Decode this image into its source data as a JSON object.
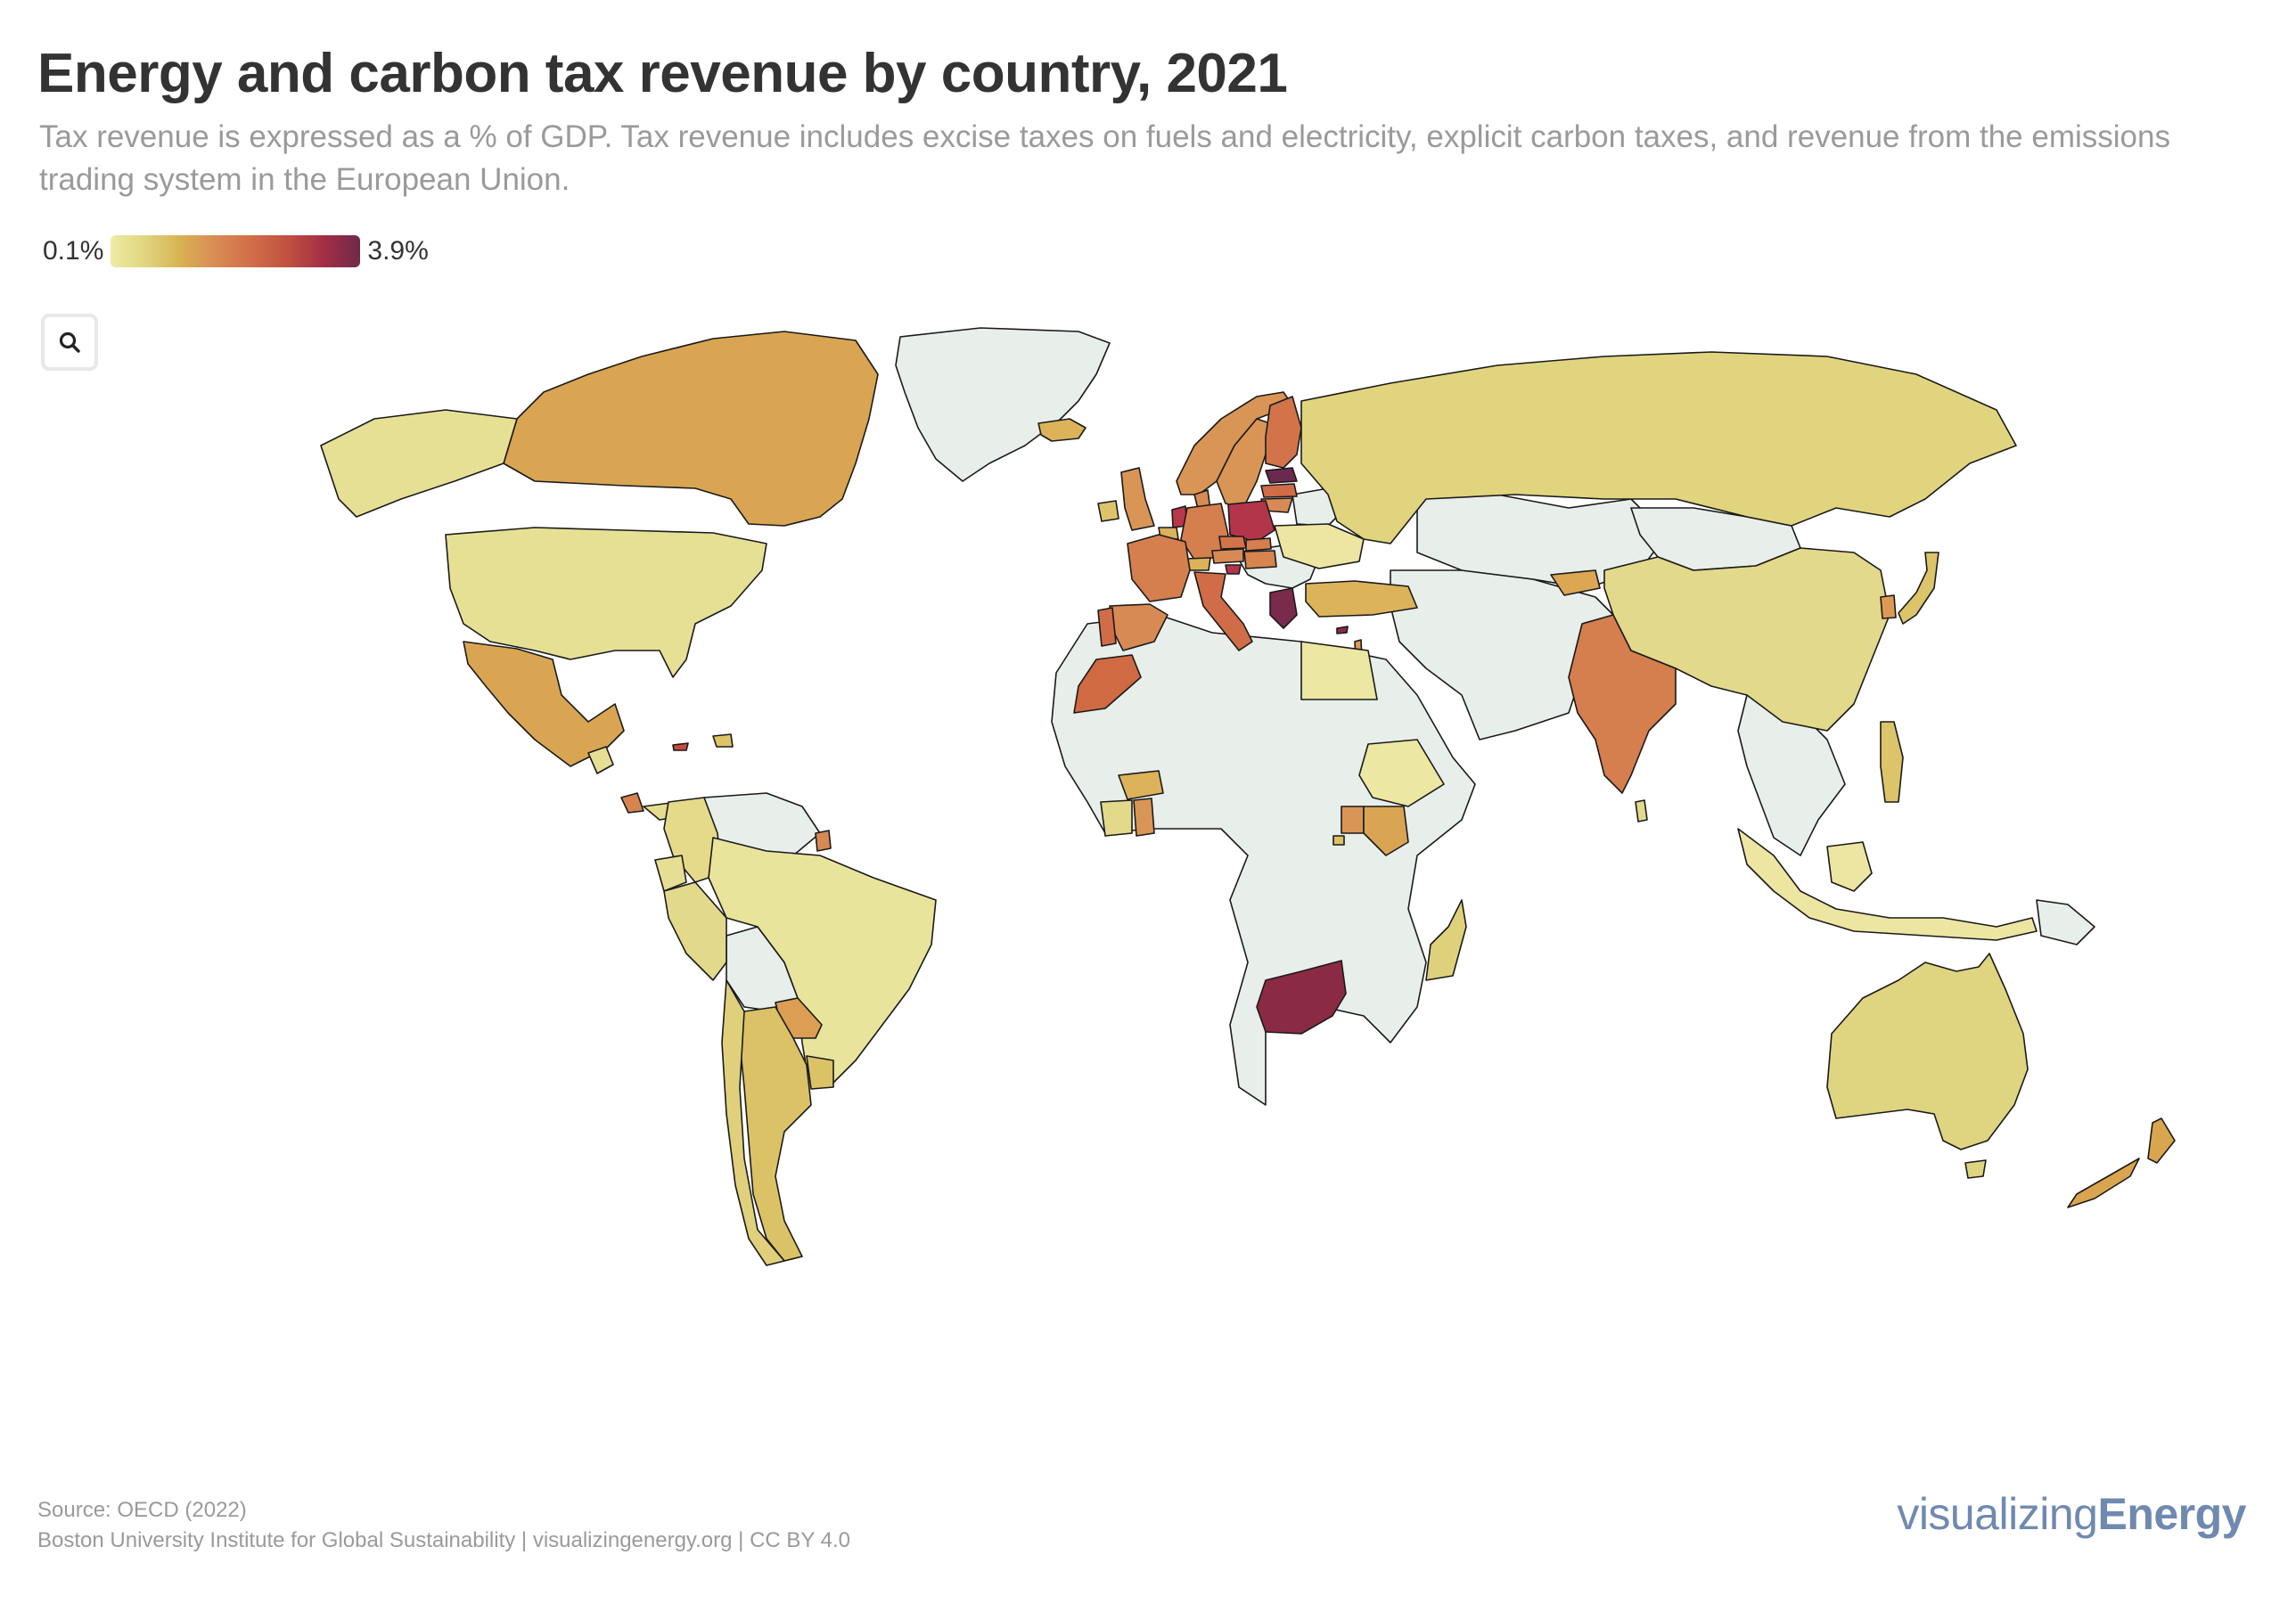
{
  "header": {
    "title": "Energy and carbon tax revenue by country, 2021",
    "subtitle": "Tax revenue is expressed as a % of GDP. Tax revenue includes excise taxes on fuels and electricity, explicit carbon taxes, and revenue from the emissions trading system in the European Union."
  },
  "legend": {
    "min_label": "0.1%",
    "max_label": "3.9%",
    "gradient": [
      "#eeeba6",
      "#e0d47e",
      "#d8b052",
      "#d88a55",
      "#d06c48",
      "#c05040",
      "#a32d45",
      "#6e2a4a"
    ]
  },
  "controls": {
    "search_icon": "search-icon"
  },
  "colors": {
    "no_data": "#e8eeea",
    "border": "#1a1a1a",
    "background": "#ffffff",
    "brand": "#7089b0"
  },
  "footer": {
    "source": "Source: OECD (2022)",
    "credit": "Boston University Institute for Global Sustainability | visualizingenergy.org | CC BY 4.0"
  },
  "logo": {
    "light": "visualizing",
    "bold": "Energy"
  },
  "chart_data": {
    "type": "choropleth",
    "title": "Energy and carbon tax revenue by country, 2021",
    "subtitle": "Tax revenue is expressed as a % of GDP. Tax revenue includes excise taxes on fuels and electricity, explicit carbon taxes, and revenue from the emissions trading system in the European Union.",
    "unit": "% of GDP",
    "scale": {
      "min": 0.1,
      "max": 3.9,
      "min_label": "0.1%",
      "max_label": "3.9%"
    },
    "legend_position": "top-left",
    "source": "OECD (2022)",
    "countries": [
      {
        "name": "Canada",
        "value": 1.3,
        "color": "#d9a553"
      },
      {
        "name": "United States",
        "value": 0.5,
        "color": "#e6e095"
      },
      {
        "name": "Mexico",
        "value": 1.3,
        "color": "#d9a553"
      },
      {
        "name": "Guatemala",
        "value": 0.5,
        "color": "#e6de92"
      },
      {
        "name": "Costa Rica",
        "value": 1.6,
        "color": "#d7844f"
      },
      {
        "name": "Panama",
        "value": 0.6,
        "color": "#e6dc8e"
      },
      {
        "name": "Jamaica",
        "value": 2.6,
        "color": "#c84a3e"
      },
      {
        "name": "Dominican Republic",
        "value": 0.9,
        "color": "#dcc46a"
      },
      {
        "name": "Colombia",
        "value": 0.6,
        "color": "#e4da8a"
      },
      {
        "name": "Ecuador",
        "value": 0.5,
        "color": "#e6de92"
      },
      {
        "name": "Peru",
        "value": 0.6,
        "color": "#e3d98b"
      },
      {
        "name": "Brazil",
        "value": 0.4,
        "color": "#e9e49c"
      },
      {
        "name": "Chile",
        "value": 0.8,
        "color": "#e0d07c"
      },
      {
        "name": "Argentina",
        "value": 1.0,
        "color": "#dcc266"
      },
      {
        "name": "Paraguay",
        "value": 1.4,
        "color": "#dc9e52"
      },
      {
        "name": "Uruguay",
        "value": 1.0,
        "color": "#dcc266"
      },
      {
        "name": "Guyana (French Guiana)",
        "value": 1.6,
        "color": "#d88a55"
      },
      {
        "name": "Iceland",
        "value": 1.2,
        "color": "#dcb35a"
      },
      {
        "name": "Norway",
        "value": 1.5,
        "color": "#d99555"
      },
      {
        "name": "Sweden",
        "value": 1.5,
        "color": "#d99555"
      },
      {
        "name": "Finland",
        "value": 2.1,
        "color": "#d3734a"
      },
      {
        "name": "Estonia",
        "value": 3.9,
        "color": "#6a2a50"
      },
      {
        "name": "Latvia",
        "value": 2.2,
        "color": "#d06c48"
      },
      {
        "name": "Lithuania",
        "value": 1.6,
        "color": "#d88a55"
      },
      {
        "name": "Denmark",
        "value": 1.6,
        "color": "#d88a55"
      },
      {
        "name": "United Kingdom",
        "value": 1.5,
        "color": "#d99555"
      },
      {
        "name": "Ireland",
        "value": 0.9,
        "color": "#dcc46a"
      },
      {
        "name": "Netherlands",
        "value": 2.9,
        "color": "#b8384a"
      },
      {
        "name": "Belgium",
        "value": 1.1,
        "color": "#dcb35a"
      },
      {
        "name": "Germany",
        "value": 1.9,
        "color": "#d57e4e"
      },
      {
        "name": "Poland",
        "value": 3.0,
        "color": "#b3354a"
      },
      {
        "name": "Czechia",
        "value": 2.1,
        "color": "#d3734a"
      },
      {
        "name": "Slovakia",
        "value": 1.9,
        "color": "#d57e4e"
      },
      {
        "name": "Austria",
        "value": 1.6,
        "color": "#d88a55"
      },
      {
        "name": "Hungary",
        "value": 1.8,
        "color": "#d7844f"
      },
      {
        "name": "Switzerland",
        "value": 1.1,
        "color": "#dcb35a"
      },
      {
        "name": "Slovenia",
        "value": 3.0,
        "color": "#b3354a"
      },
      {
        "name": "France",
        "value": 1.9,
        "color": "#d57e4e"
      },
      {
        "name": "Spain",
        "value": 1.6,
        "color": "#d88a55"
      },
      {
        "name": "Portugal",
        "value": 2.2,
        "color": "#d06c48"
      },
      {
        "name": "Italy",
        "value": 2.2,
        "color": "#d06c48"
      },
      {
        "name": "Greece",
        "value": 3.6,
        "color": "#7a2a4a"
      },
      {
        "name": "Cyprus",
        "value": 3.2,
        "color": "#8b2a45"
      },
      {
        "name": "Turkey",
        "value": 1.1,
        "color": "#dcb35a"
      },
      {
        "name": "Ukraine",
        "value": 0.4,
        "color": "#ece6a2"
      },
      {
        "name": "Russia",
        "value": 0.7,
        "color": "#e0d47e"
      },
      {
        "name": "Kyrgyzstan",
        "value": 1.3,
        "color": "#dca653"
      },
      {
        "name": "Israel",
        "value": 1.5,
        "color": "#dc9a52"
      },
      {
        "name": "Morocco",
        "value": 2.2,
        "color": "#cf6a42"
      },
      {
        "name": "Egypt",
        "value": 0.3,
        "color": "#ece7a2"
      },
      {
        "name": "Burkina Faso",
        "value": 1.1,
        "color": "#dcb35a"
      },
      {
        "name": "Cote d'Ivoire",
        "value": 0.6,
        "color": "#e3d98b"
      },
      {
        "name": "Ghana",
        "value": 1.5,
        "color": "#d99555"
      },
      {
        "name": "Ethiopia",
        "value": 0.4,
        "color": "#ece7a2"
      },
      {
        "name": "Uganda",
        "value": 1.5,
        "color": "#d99555"
      },
      {
        "name": "Kenya",
        "value": 1.3,
        "color": "#d9a553"
      },
      {
        "name": "Rwanda",
        "value": 1.0,
        "color": "#dcc266"
      },
      {
        "name": "Madagascar",
        "value": 0.8,
        "color": "#dfd07c"
      },
      {
        "name": "South Africa",
        "value": 3.3,
        "color": "#8b2a45"
      },
      {
        "name": "India",
        "value": 1.9,
        "color": "#d57e4e"
      },
      {
        "name": "Sri Lanka",
        "value": 0.7,
        "color": "#e3d98b"
      },
      {
        "name": "China",
        "value": 0.6,
        "color": "#e3d98b"
      },
      {
        "name": "South Korea",
        "value": 1.5,
        "color": "#de9a55"
      },
      {
        "name": "Japan",
        "value": 0.9,
        "color": "#dcc46a"
      },
      {
        "name": "Philippines",
        "value": 0.9,
        "color": "#dcc46a"
      },
      {
        "name": "Indonesia",
        "value": 0.4,
        "color": "#ece6a2"
      },
      {
        "name": "Malaysia",
        "value": 0.4,
        "color": "#ece6a2"
      },
      {
        "name": "Australia",
        "value": 0.7,
        "color": "#dfd480"
      },
      {
        "name": "New Zealand",
        "value": 1.3,
        "color": "#d9a54f"
      }
    ]
  }
}
